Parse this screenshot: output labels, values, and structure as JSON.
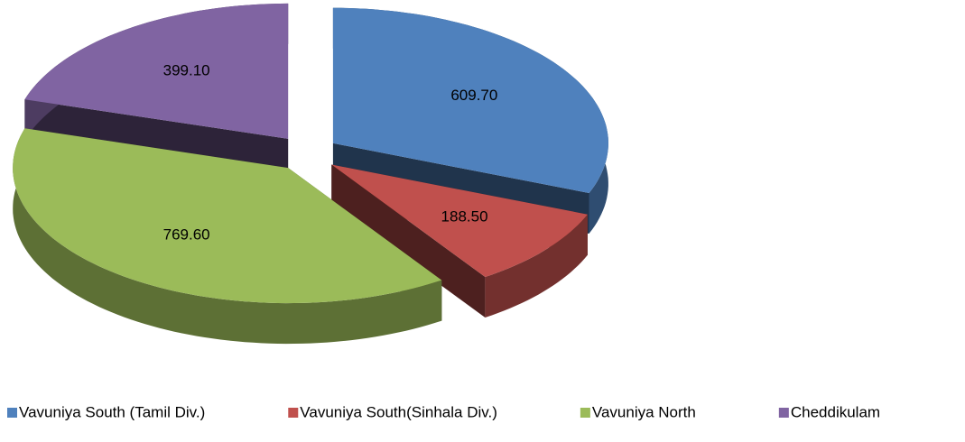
{
  "chart_data": {
    "type": "pie",
    "categories": [
      "Vavuniya South (Tamil Div.)",
      "Vavuniya South(Sinhala Div.)",
      "Vavuniya North",
      "Cheddikulam"
    ],
    "values": [
      609.7,
      188.5,
      769.6,
      399.1
    ],
    "value_labels": [
      "609.70",
      "188.50",
      "769.60",
      "399.10"
    ],
    "colors": [
      "#4f81bd",
      "#c0504d",
      "#9bbb59",
      "#8064a2"
    ],
    "legend": "bottom"
  }
}
